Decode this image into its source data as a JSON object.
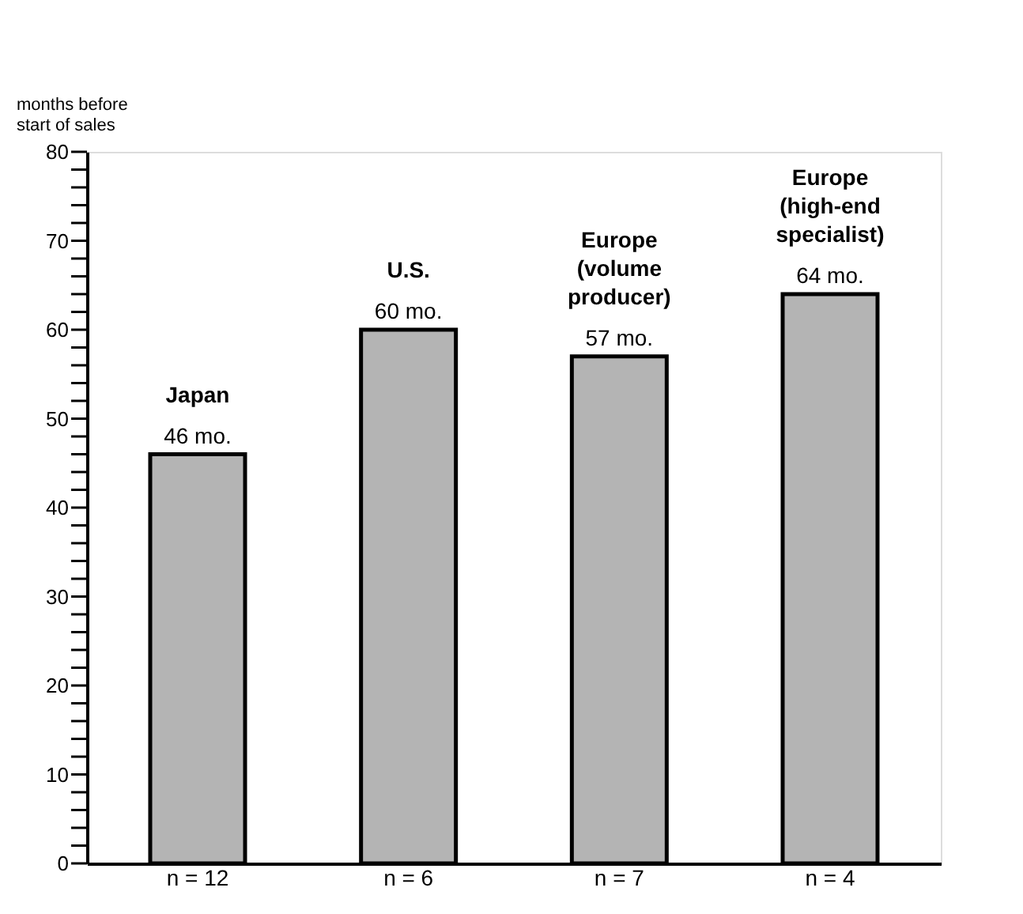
{
  "chart_data": {
    "type": "bar",
    "ylabel": "months before start of sales",
    "categories": [
      "Japan",
      "U.S.",
      "Europe (volume producer)",
      "Europe (high-end specialist)"
    ],
    "values": [
      46,
      60,
      57,
      64
    ],
    "value_labels": [
      "46 mo.",
      "60 mo.",
      "57 mo.",
      "64 mo."
    ],
    "color": "#b4b4b4",
    "ylim": [
      0,
      80
    ],
    "yticks": [
      0,
      {
        "value": 2,
        "label": null
      },
      {
        "value": 4,
        "label": null
      },
      {
        "value": 6,
        "label": null
      },
      {
        "value": 8,
        "label": null
      },
      10,
      {
        "value": 12,
        "label": null
      },
      {
        "value": 14,
        "label": null
      },
      {
        "value": 16,
        "label": null
      },
      {
        "value": 18,
        "label": null
      },
      20,
      {
        "value": 22,
        "label": null
      },
      {
        "value": 24,
        "label": null
      },
      {
        "value": 26,
        "label": null
      },
      {
        "value": 28,
        "label": null
      },
      30,
      {
        "value": 32,
        "label": null
      },
      {
        "value": 34,
        "label": null
      },
      {
        "value": 36,
        "label": null
      },
      {
        "value": 38,
        "label": null
      },
      40,
      {
        "value": 42,
        "label": null
      },
      {
        "value": 44,
        "label": null
      },
      {
        "value": 46,
        "label": null
      },
      {
        "value": 48,
        "label": null
      },
      50,
      {
        "value": 52,
        "label": null
      },
      {
        "value": 54,
        "label": null
      },
      {
        "value": 56,
        "label": null
      },
      {
        "value": 58,
        "label": null
      },
      60,
      {
        "value": 62,
        "label": null
      },
      {
        "value": 64,
        "label": null
      },
      {
        "value": 66,
        "label": null
      },
      {
        "value": 68,
        "label": null
      },
      70,
      {
        "value": 72,
        "label": null
      },
      {
        "value": 74,
        "label": null
      },
      {
        "value": 76,
        "label": null
      },
      {
        "value": 78,
        "label": null
      },
      80
    ],
    "annotations": [
      "n = 12",
      "n = 6",
      "n = 7",
      "n = 4"
    ],
    "grid": false
  }
}
